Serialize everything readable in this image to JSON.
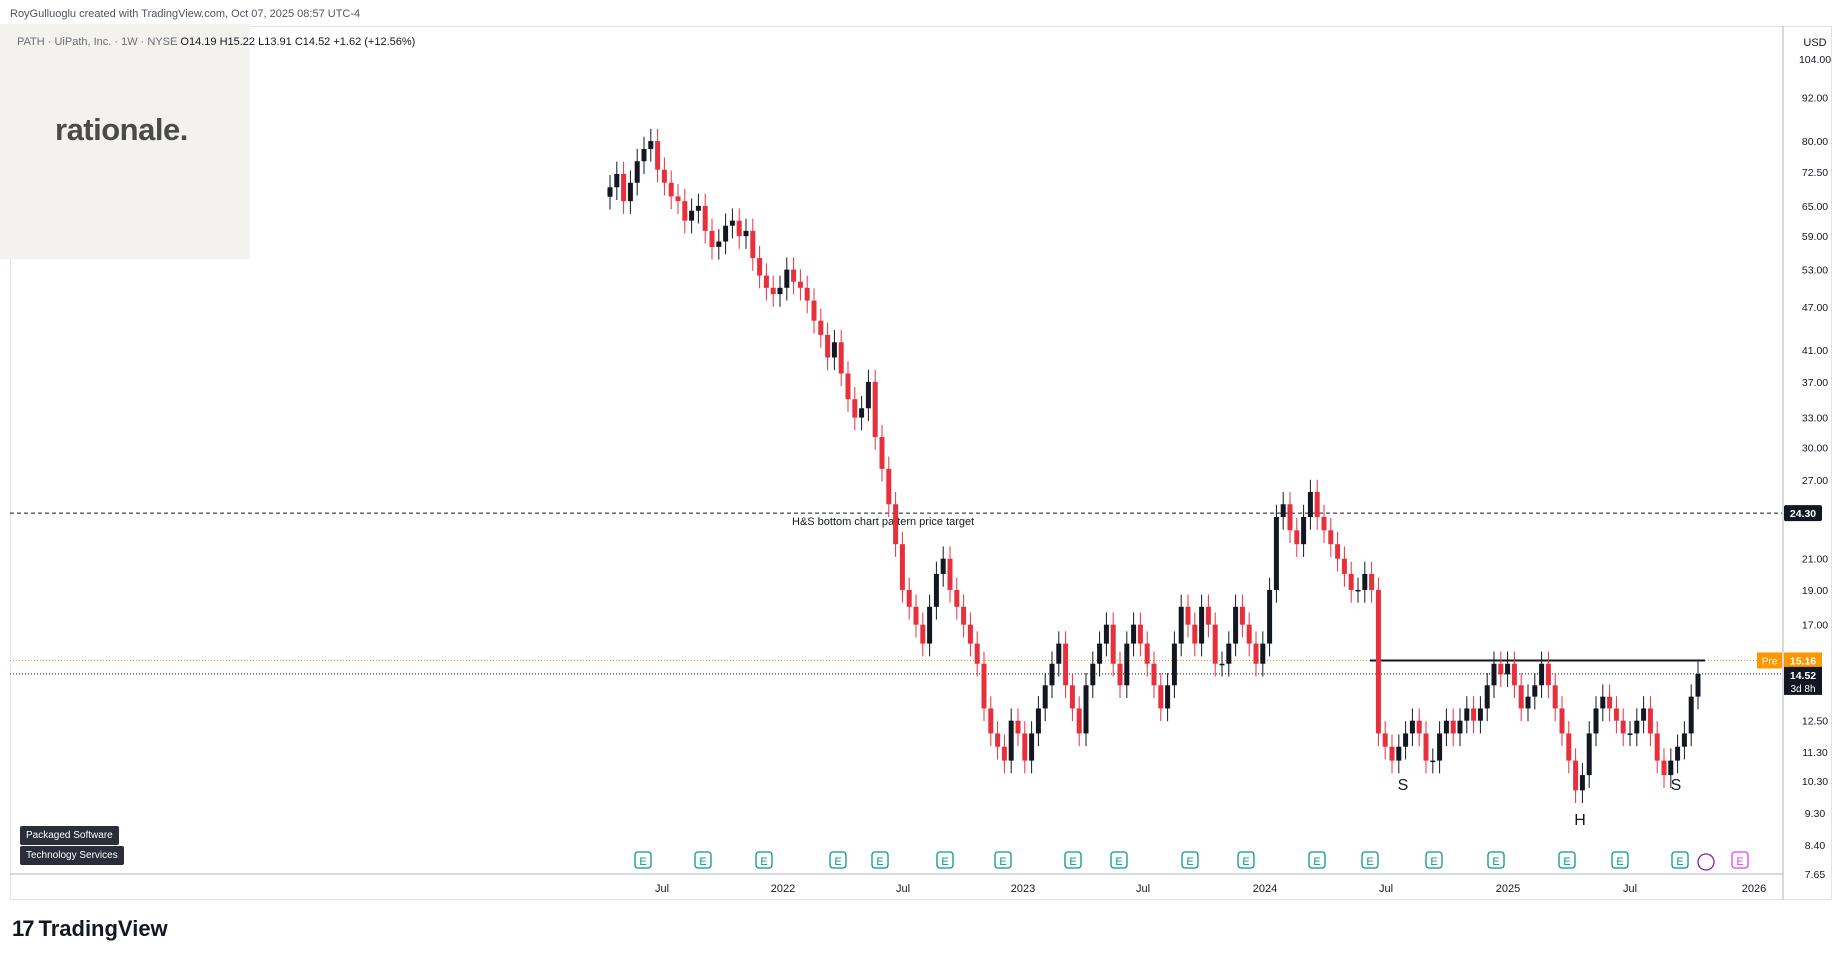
{
  "credit": "RoyGulluoglu created with TradingView.com, Oct 07, 2025 08:57 UTC-4",
  "watermark": "rationale.",
  "symbol_info": {
    "name": "PATH · UiPath, Inc. · 1W · NYSE",
    "open": "O14.19",
    "high": "H15.22",
    "low": "L13.91",
    "close": "C14.52",
    "change": "+1.62 (+12.56%)"
  },
  "tags": [
    "Packaged Software",
    "Technology Services"
  ],
  "footer_brand": "TradingView",
  "colors": {
    "up": "#131722",
    "down": "#e8303d",
    "pre": "#ff9800",
    "grid": "#e0e3eb"
  },
  "chart_data": {
    "type": "candlestick",
    "currency": "USD",
    "scale": "log",
    "ylim": [
      7.65,
      112
    ],
    "y_ticks": [
      "104.00",
      "92.00",
      "80.00",
      "72.50",
      "65.00",
      "59.00",
      "53.00",
      "47.00",
      "41.00",
      "37.00",
      "33.00",
      "30.00",
      "27.00",
      "24.30",
      "21.00",
      "19.00",
      "17.00",
      "15.16",
      "14.52",
      "12.50",
      "11.30",
      "10.30",
      "9.30",
      "8.40",
      "7.65"
    ],
    "x_ticks": [
      "Jul",
      "2022",
      "Jul",
      "2023",
      "Jul",
      "2024",
      "Jul",
      "2025",
      "Jul",
      "2026"
    ],
    "series": [
      {
        "period": "2021-05",
        "values": [
          69,
          72,
          66,
          70,
          75,
          78,
          80,
          73,
          70,
          67,
          66,
          62,
          64,
          65,
          60,
          57,
          58,
          61,
          62,
          59,
          60
        ]
      },
      {
        "period": "2022",
        "values": [
          55,
          52,
          50,
          49,
          50,
          53,
          51,
          50,
          48,
          45,
          43,
          40,
          42,
          38,
          35,
          33,
          34,
          37,
          31,
          28,
          25,
          22,
          19,
          18,
          17,
          16,
          18,
          20,
          21,
          19,
          18,
          17,
          16,
          15,
          13,
          12,
          11.5,
          11,
          12.5,
          12,
          11,
          12,
          13,
          14,
          15,
          16
        ]
      },
      {
        "period": "2023",
        "values": [
          14,
          13,
          12,
          14,
          15,
          16,
          17,
          15,
          14,
          16,
          17,
          16,
          15,
          14,
          13,
          14,
          16,
          18,
          17,
          16,
          18,
          17,
          15,
          15,
          16,
          18,
          17,
          16,
          15,
          16,
          19,
          24,
          25,
          23,
          22,
          24,
          26,
          24,
          23,
          22,
          21,
          20,
          19,
          19,
          20,
          19,
          12,
          11.5,
          11,
          11.5,
          12,
          12.5,
          12,
          11,
          11,
          12,
          12.5,
          12,
          12.5,
          13,
          12.5,
          13,
          14,
          15,
          14.5,
          15,
          14,
          13,
          13.5,
          14,
          15,
          14
        ]
      },
      {
        "period": "2025",
        "values": [
          13,
          12,
          11,
          10,
          10.5,
          12,
          13,
          13.5,
          13,
          12.5,
          12,
          12,
          12.5,
          13,
          12,
          11,
          10.5,
          11,
          11.5,
          12,
          13.5,
          14.52
        ]
      }
    ],
    "annotations": [
      {
        "text": "H&S bottom chart pattern price target",
        "price": 24.3
      },
      {
        "text": "S",
        "label": "left shoulder"
      },
      {
        "text": "H",
        "label": "head"
      },
      {
        "text": "S",
        "label": "right shoulder"
      }
    ],
    "neckline": 15.16,
    "price_labels": {
      "target": "24.30",
      "pre_tag": "Pre",
      "pre": "15.16",
      "last": "14.52",
      "countdown": "3d 8h"
    },
    "earnings_markers": 19
  }
}
